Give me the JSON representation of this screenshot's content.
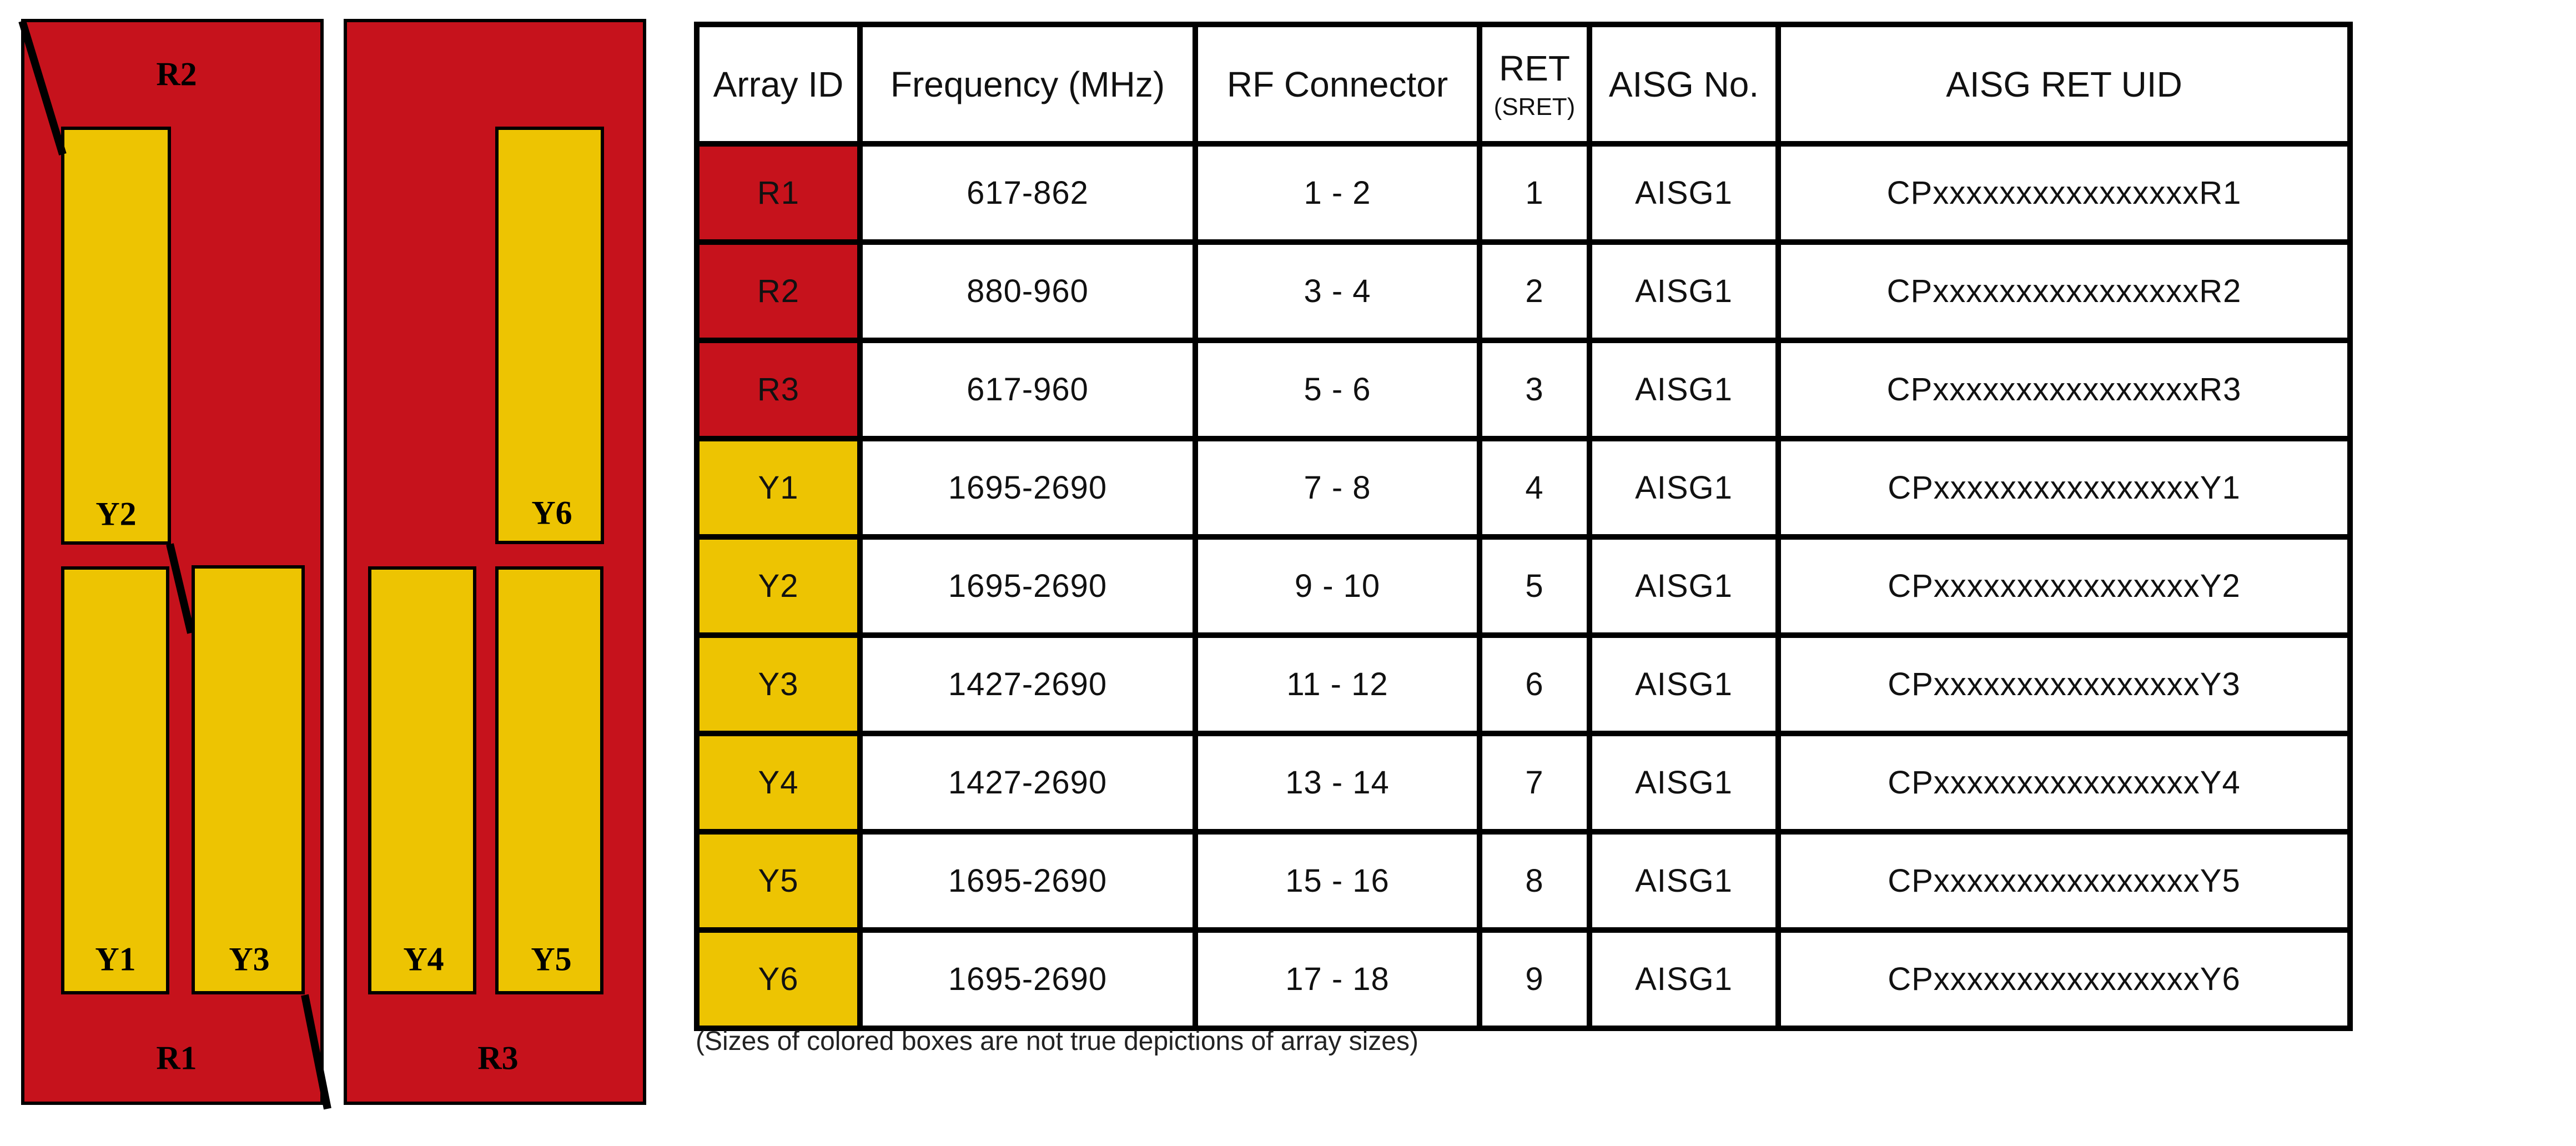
{
  "colors": {
    "red": "#C6121C",
    "yellow": "#EDC402",
    "line": "#000000"
  },
  "diagram": {
    "panel1": {
      "top_label": "R2",
      "bottom_label": "R1",
      "boxes": {
        "y2": "Y2",
        "y1": "Y1",
        "y3": "Y3"
      }
    },
    "panel2": {
      "bottom_label": "R3",
      "boxes": {
        "y6": "Y6",
        "y4": "Y4",
        "y5": "Y5"
      }
    }
  },
  "note": {
    "text": "(Sizes of colored boxes are not true depictions of array sizes)"
  },
  "table": {
    "headers": [
      {
        "label": "Array ID"
      },
      {
        "label": "Frequency (MHz)"
      },
      {
        "label": "RF Connector"
      },
      {
        "label": "RET",
        "sublabel": "(SRET)"
      },
      {
        "label": "AISG No."
      },
      {
        "label": "AISG RET UID"
      }
    ],
    "rows": [
      {
        "array_id": "R1",
        "color": "red",
        "frequency": "617-862",
        "rf_connector": "1 - 2",
        "ret": "1",
        "aisg_no": "AISG1",
        "uid": "CPxxxxxxxxxxxxxxxxR1"
      },
      {
        "array_id": "R2",
        "color": "red",
        "frequency": "880-960",
        "rf_connector": "3 - 4",
        "ret": "2",
        "aisg_no": "AISG1",
        "uid": "CPxxxxxxxxxxxxxxxxR2"
      },
      {
        "array_id": "R3",
        "color": "red",
        "frequency": "617-960",
        "rf_connector": "5 - 6",
        "ret": "3",
        "aisg_no": "AISG1",
        "uid": "CPxxxxxxxxxxxxxxxxR3"
      },
      {
        "array_id": "Y1",
        "color": "yellow",
        "frequency": "1695-2690",
        "rf_connector": "7 - 8",
        "ret": "4",
        "aisg_no": "AISG1",
        "uid": "CPxxxxxxxxxxxxxxxxY1"
      },
      {
        "array_id": "Y2",
        "color": "yellow",
        "frequency": "1695-2690",
        "rf_connector": "9 - 10",
        "ret": "5",
        "aisg_no": "AISG1",
        "uid": "CPxxxxxxxxxxxxxxxxY2"
      },
      {
        "array_id": "Y3",
        "color": "yellow",
        "frequency": "1427-2690",
        "rf_connector": "11 - 12",
        "ret": "6",
        "aisg_no": "AISG1",
        "uid": "CPxxxxxxxxxxxxxxxxY3"
      },
      {
        "array_id": "Y4",
        "color": "yellow",
        "frequency": "1427-2690",
        "rf_connector": "13 - 14",
        "ret": "7",
        "aisg_no": "AISG1",
        "uid": "CPxxxxxxxxxxxxxxxxY4"
      },
      {
        "array_id": "Y5",
        "color": "yellow",
        "frequency": "1695-2690",
        "rf_connector": "15 - 16",
        "ret": "8",
        "aisg_no": "AISG1",
        "uid": "CPxxxxxxxxxxxxxxxxY5"
      },
      {
        "array_id": "Y6",
        "color": "yellow",
        "frequency": "1695-2690",
        "rf_connector": "17 - 18",
        "ret": "9",
        "aisg_no": "AISG1",
        "uid": "CPxxxxxxxxxxxxxxxxY6"
      }
    ]
  }
}
